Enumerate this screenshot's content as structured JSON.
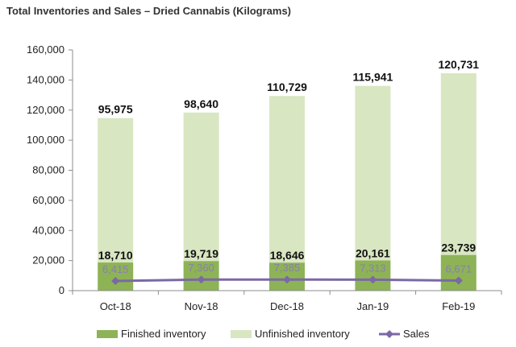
{
  "chart_data": {
    "type": "bar",
    "title": "Total Inventories and Sales – Dried Cannabis (Kilograms)",
    "categories": [
      "Oct-18",
      "Nov-18",
      "Dec-18",
      "Jan-19",
      "Feb-19"
    ],
    "ylim": [
      0,
      160000
    ],
    "yticks": [
      0,
      20000,
      40000,
      60000,
      80000,
      100000,
      120000,
      140000,
      160000
    ],
    "ytick_labels": [
      "0",
      "20,000",
      "40,000",
      "60,000",
      "80,000",
      "100,000",
      "120,000",
      "140,000",
      "160,000"
    ],
    "stacked": true,
    "grid": false,
    "legend_position": "bottom",
    "series": [
      {
        "name": "Finished inventory",
        "type": "bar",
        "color": "#8db356",
        "values": [
          18710,
          19719,
          18646,
          20161,
          23739
        ],
        "labels": [
          "18,710",
          "19,719",
          "18,646",
          "20,161",
          "23,739"
        ]
      },
      {
        "name": "Unfinished inventory",
        "type": "bar",
        "color": "#d8e6c2",
        "values": [
          95975,
          98640,
          110729,
          115941,
          120731
        ],
        "labels": [
          "95,975",
          "98,640",
          "110,729",
          "115,941",
          "120,731"
        ]
      },
      {
        "name": "Sales",
        "type": "line",
        "color": "#7b68a6",
        "values": [
          6415,
          7360,
          7385,
          7313,
          6671
        ],
        "labels": [
          "6,415",
          "7,360",
          "7,385",
          "7,313",
          "6,671"
        ]
      }
    ]
  }
}
